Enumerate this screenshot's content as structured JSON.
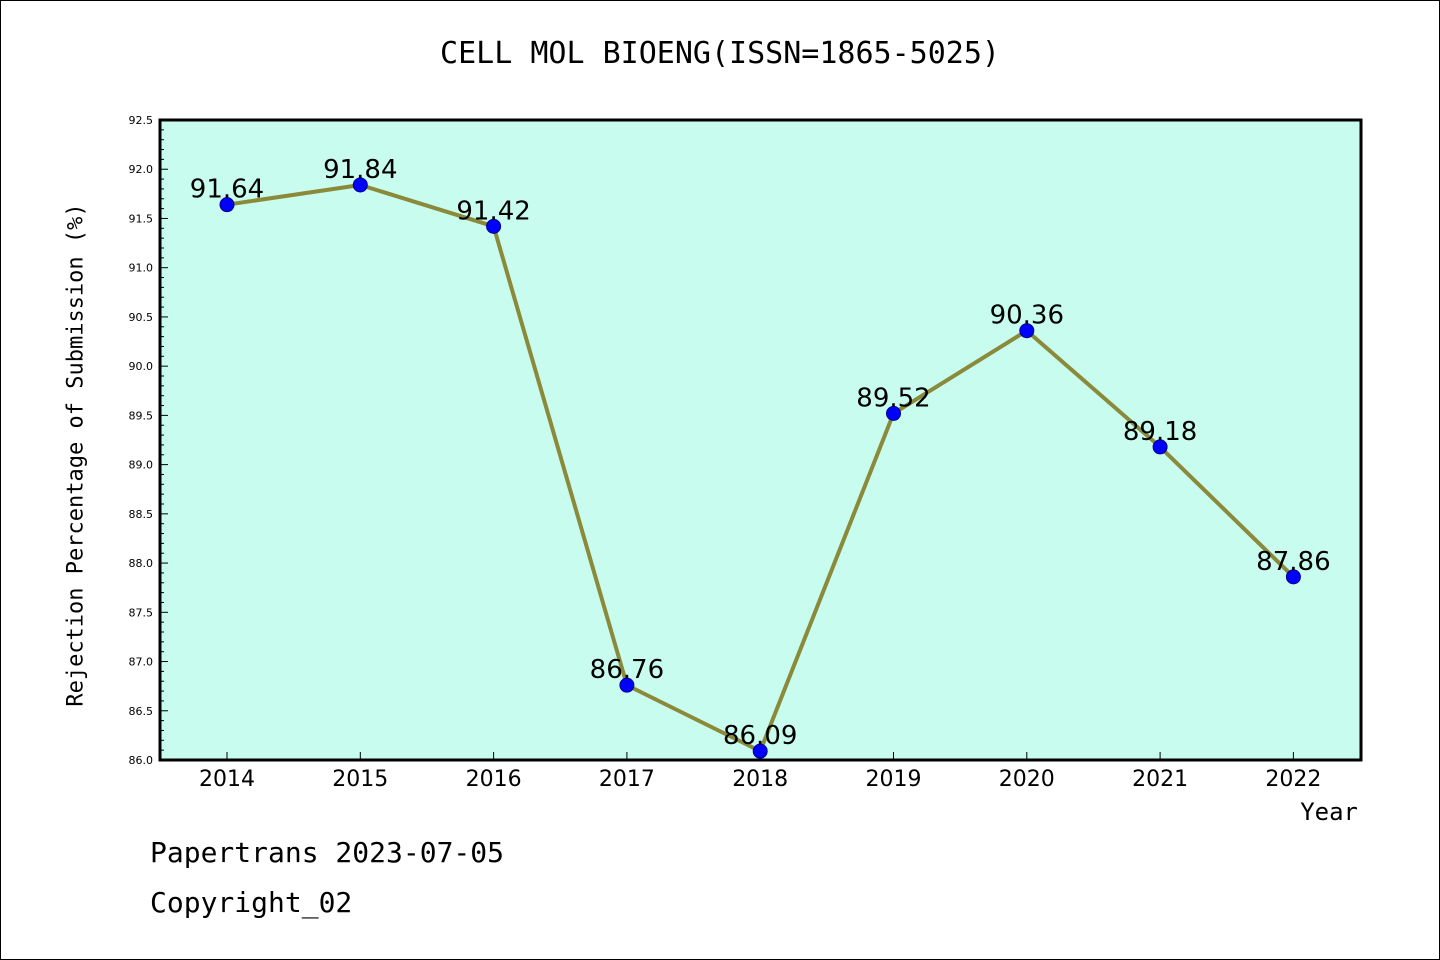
{
  "chart_data": {
    "type": "line",
    "title": "CELL MOL BIOENG(ISSN=1865-5025)",
    "xlabel": "Year",
    "ylabel": "Rejection Percentage of Submission (%)",
    "categories": [
      "2014",
      "2015",
      "2016",
      "2017",
      "2018",
      "2019",
      "2020",
      "2021",
      "2022"
    ],
    "values": [
      91.64,
      91.84,
      91.42,
      86.76,
      86.09,
      89.52,
      90.36,
      89.18,
      87.86
    ],
    "value_labels": [
      "91.64",
      "91.84",
      "91.42",
      "86.76",
      "86.09",
      "89.52",
      "90.36",
      "89.18",
      "87.86"
    ],
    "ylim": [
      86.0,
      92.5
    ],
    "yticks": [
      "86.0",
      "86.5",
      "87.0",
      "87.5",
      "88.0",
      "88.5",
      "89.0",
      "89.5",
      "90.0",
      "90.5",
      "91.0",
      "91.5",
      "92.0",
      "92.5"
    ],
    "grid": false,
    "colors": {
      "plot_background": "#c8fcee",
      "line": "#8a8a3a",
      "marker": "#0000ff"
    }
  },
  "footer": {
    "line1": "Papertrans 2023-07-05",
    "line2": "Copyright_02"
  }
}
